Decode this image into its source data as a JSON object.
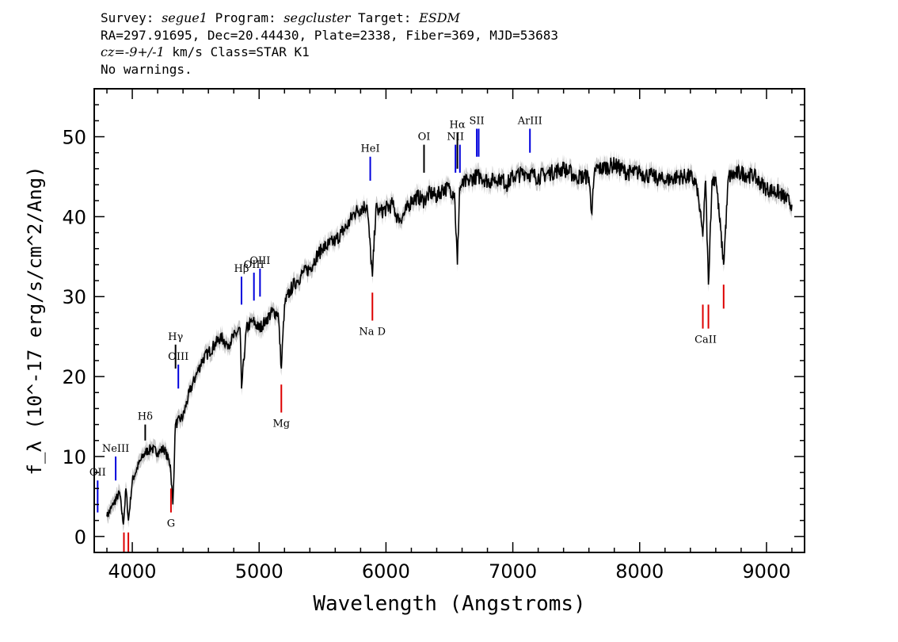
{
  "header": {
    "survey_label": "Survey:",
    "survey": "segue1",
    "program_label": "Program:",
    "program": "segcluster",
    "target_label": "Target:",
    "target": "ESDM",
    "line2": "RA=297.91695, Dec=20.44430, Plate=2338, Fiber=369, MJD=53683",
    "cz_prefix": "cz",
    "cz_value": "=-9+/-1",
    "cz_rest": " km/s Class=STAR K1",
    "warnings": "No warnings."
  },
  "chart_data": {
    "type": "line",
    "xlabel": "Wavelength (Angstroms)",
    "ylabel": "f_λ (10^-17 erg/s/cm^2/Ang)",
    "xlim": [
      3700,
      9300
    ],
    "ylim": [
      -2,
      56
    ],
    "xticks": [
      4000,
      5000,
      6000,
      7000,
      8000,
      9000
    ],
    "yticks": [
      0,
      10,
      20,
      30,
      40,
      50
    ],
    "grid": false,
    "series": [
      {
        "x": [
          3800,
          3850,
          3900,
          3930,
          3950,
          3970,
          4000,
          4050,
          4100,
          4150,
          4200,
          4250,
          4300,
          4320,
          4340,
          4400,
          4450,
          4500,
          4550,
          4600,
          4650,
          4700,
          4750,
          4800,
          4850,
          4861,
          4900,
          4950,
          5000,
          5050,
          5100,
          5150,
          5175,
          5200,
          5250,
          5300,
          5350,
          5400,
          5450,
          5500,
          5550,
          5600,
          5650,
          5700,
          5750,
          5800,
          5850,
          5893,
          5920,
          5950,
          6000,
          6050,
          6100,
          6150,
          6200,
          6250,
          6300,
          6350,
          6400,
          6450,
          6500,
          6540,
          6563,
          6580,
          6600,
          6650,
          6700,
          6750,
          6800,
          6850,
          6900,
          6950,
          7000,
          7100,
          7200,
          7300,
          7400,
          7500,
          7600,
          7620,
          7650,
          7700,
          7800,
          7900,
          8000,
          8100,
          8200,
          8300,
          8400,
          8450,
          8498,
          8520,
          8542,
          8570,
          8600,
          8662,
          8700,
          8800,
          8900,
          9000,
          9100,
          9200
        ],
        "y": [
          2.5,
          4,
          5.5,
          1.5,
          6,
          2,
          7,
          9,
          10.5,
          11,
          10.5,
          11,
          9,
          4,
          14,
          15,
          18,
          20,
          22,
          23,
          24,
          25,
          24,
          25,
          26,
          18.5,
          26,
          27,
          26,
          27,
          28,
          28,
          21,
          29,
          31,
          32,
          33,
          33.5,
          35,
          36,
          36.5,
          37,
          38,
          39,
          40.5,
          41,
          41.5,
          32.5,
          41,
          40.5,
          41,
          41.5,
          39.5,
          40.5,
          42,
          42.5,
          42,
          43,
          42.5,
          43.5,
          43.5,
          43,
          34,
          43.5,
          44,
          44.5,
          45,
          45,
          44.5,
          44.5,
          45,
          44,
          45,
          45.5,
          45,
          45.5,
          46,
          45,
          45,
          40.5,
          46,
          46,
          46.5,
          45.5,
          45.5,
          45,
          44.5,
          45,
          45,
          44,
          37.5,
          44.5,
          31.5,
          44.5,
          45,
          34,
          45,
          45.5,
          45,
          43.5,
          43,
          41.5
        ]
      }
    ],
    "emission_lines": [
      {
        "label": "OII",
        "x": 3727,
        "top": 7,
        "bottom": 3
      },
      {
        "label": "NeIII",
        "x": 3869,
        "top": 10,
        "bottom": 7
      },
      {
        "label": "Hδ",
        "x": 4102,
        "top": 14,
        "bottom": 12
      },
      {
        "label": "Hγ",
        "x": 4341,
        "top": 24,
        "bottom": 21
      },
      {
        "label": "OIII",
        "x": 4363,
        "top": 21.5,
        "bottom": 18.5
      },
      {
        "label": "Hβ",
        "x": 4861,
        "top": 32.5,
        "bottom": 29
      },
      {
        "label": "OIII",
        "x": 4959,
        "top": 33,
        "bottom": 29.5
      },
      {
        "label": "OIII",
        "x": 5007,
        "top": 33.5,
        "bottom": 30
      },
      {
        "label": "HeI",
        "x": 5876,
        "top": 47.5,
        "bottom": 44.5
      },
      {
        "label": "OI",
        "x": 6300,
        "top": 49,
        "bottom": 45.5
      },
      {
        "label": "NII",
        "x": 6548,
        "top": 49,
        "bottom": 45.5
      },
      {
        "label": "Hα",
        "x": 6563,
        "top": 50.5,
        "bottom": 46
      },
      {
        "label": "NII",
        "x": 6583,
        "top": 49,
        "bottom": 45.5
      },
      {
        "label": "SII",
        "x": 6716,
        "top": 51,
        "bottom": 47.5
      },
      {
        "label": "SII",
        "x": 6731,
        "top": 51,
        "bottom": 47.5
      },
      {
        "label": "ArIII",
        "x": 7135,
        "top": 51,
        "bottom": 48
      }
    ],
    "absorption_lines": [
      {
        "label": "",
        "x": 3934,
        "top": 0.5,
        "bottom": -2
      },
      {
        "label": "",
        "x": 3969,
        "top": 0.5,
        "bottom": -2
      },
      {
        "label": "G",
        "x": 4305,
        "top": 6,
        "bottom": 3
      },
      {
        "label": "Mg",
        "x": 5175,
        "top": 19,
        "bottom": 15.5
      },
      {
        "label": "Na D",
        "x": 5893,
        "top": 30.5,
        "bottom": 27
      },
      {
        "label": "CaII",
        "x": 8498,
        "top": 29,
        "bottom": 26
      },
      {
        "label": "CaII",
        "x": 8542,
        "top": 29,
        "bottom": 26
      },
      {
        "label": "CaII",
        "x": 8662,
        "top": 31.5,
        "bottom": 28.5
      }
    ],
    "colors": {
      "spectrum": "#000000",
      "error_band": "#c8c8c8",
      "emission": "#0000dd",
      "absorption": "#dd0000",
      "hline": "#000000"
    }
  }
}
